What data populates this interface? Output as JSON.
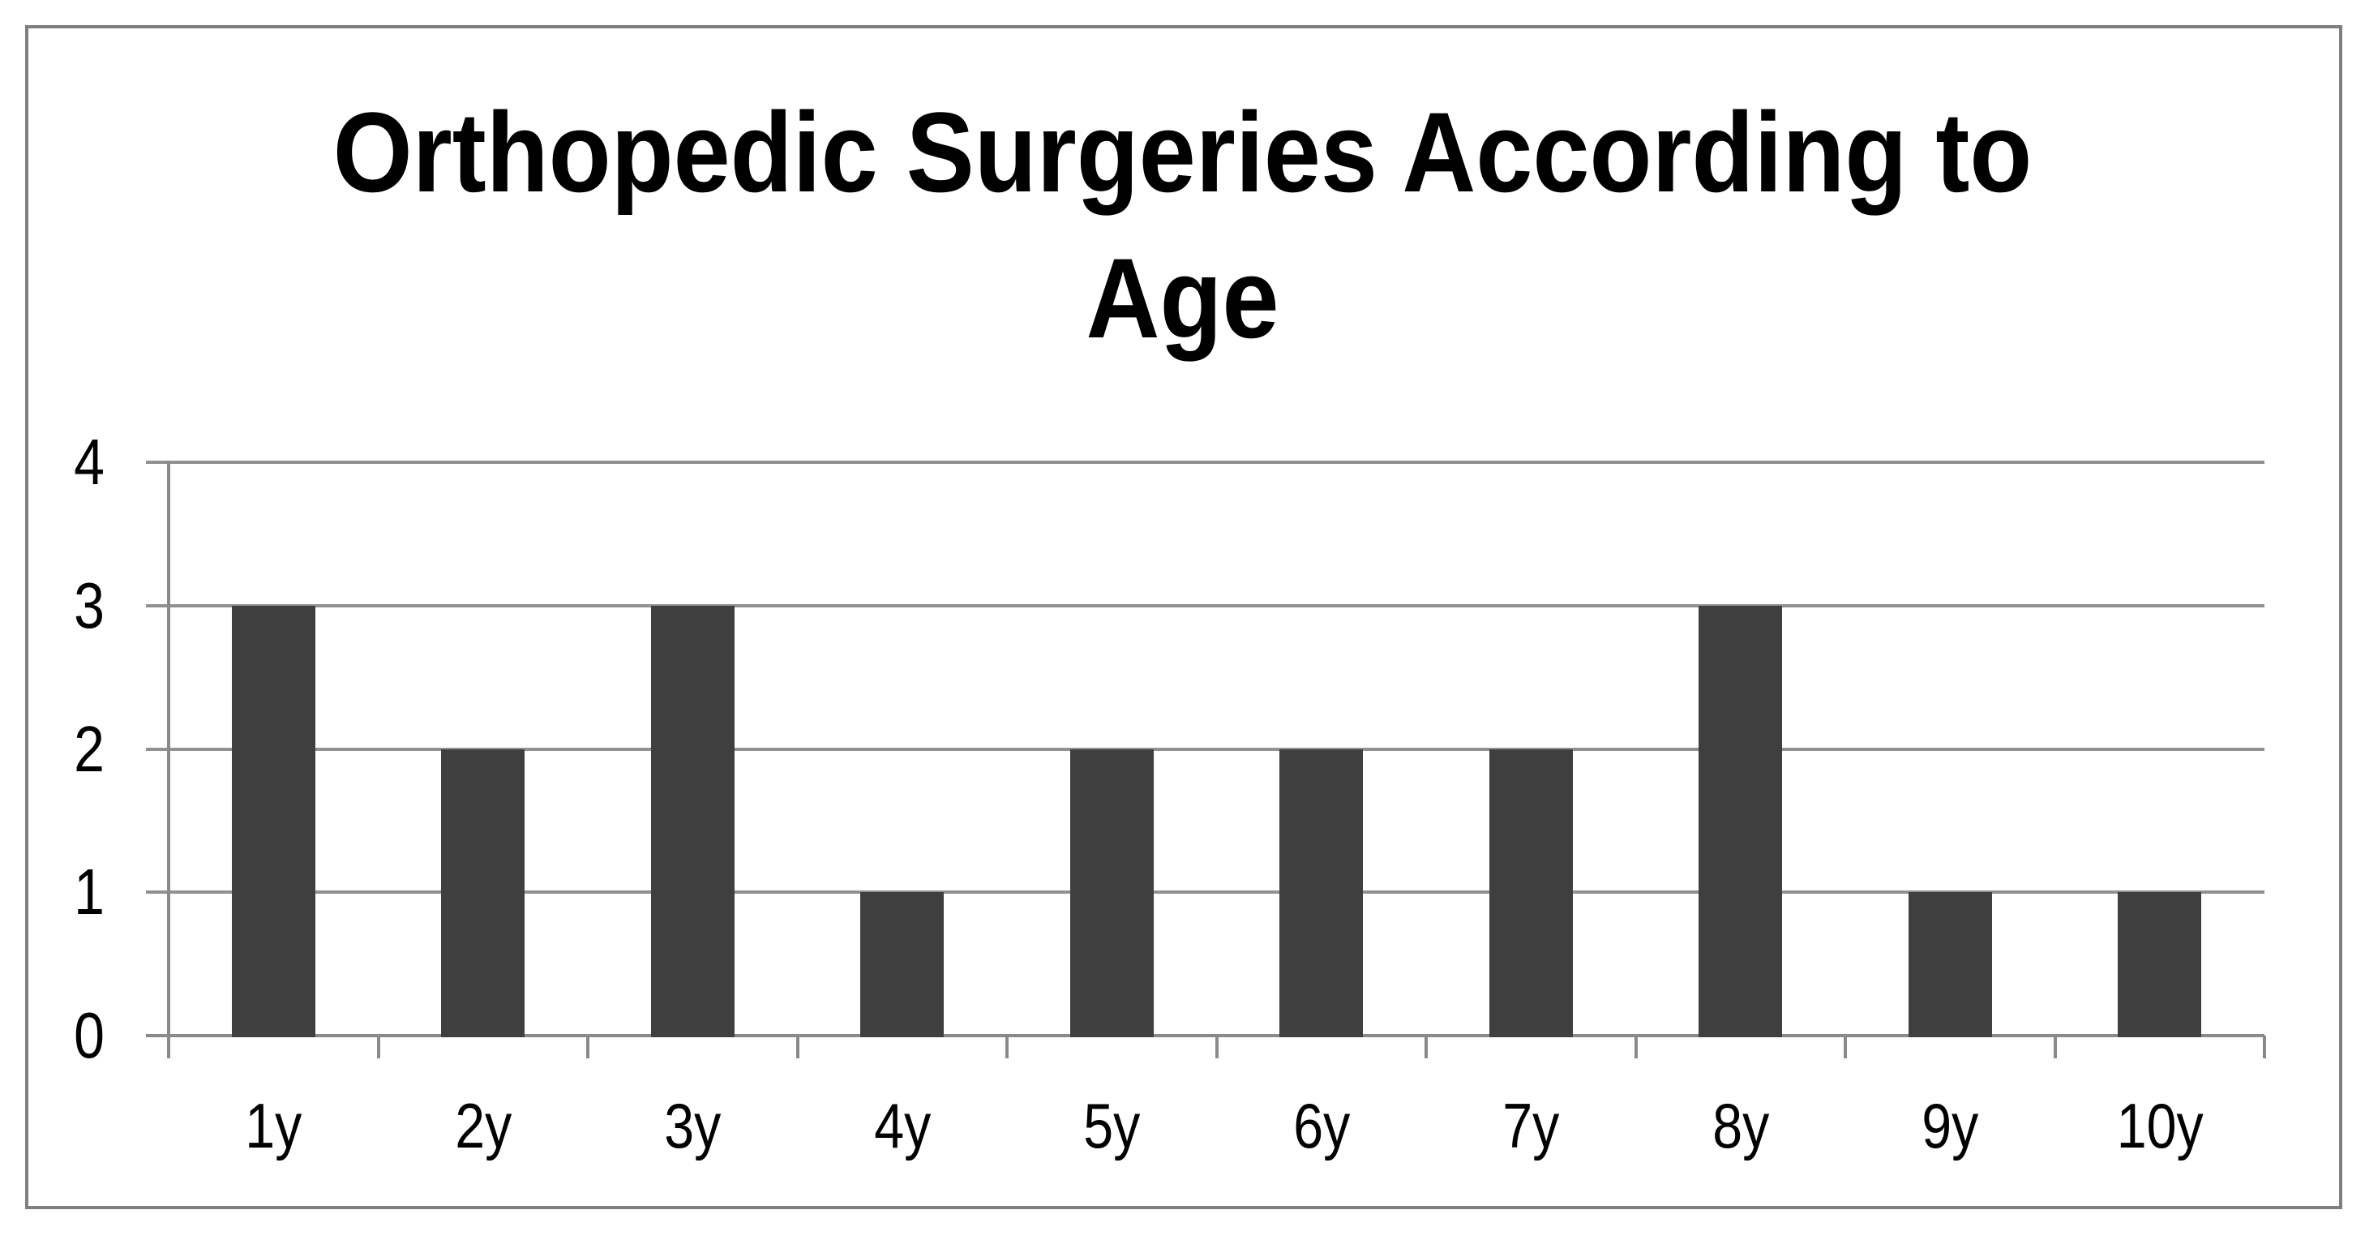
{
  "chart_data": {
    "type": "bar",
    "title": "Orthopedic Surgeries According to Age",
    "title_lines": [
      "Orthopedic Surgeries According to",
      "Age"
    ],
    "categories": [
      "1y",
      "2y",
      "3y",
      "4y",
      "5y",
      "6y",
      "7y",
      "8y",
      "9y",
      "10y"
    ],
    "values": [
      3,
      2,
      3,
      1,
      2,
      2,
      2,
      3,
      1,
      1
    ],
    "xlabel": "",
    "ylabel": "",
    "ylim": [
      0,
      4
    ],
    "ytick_step": 1,
    "yticks": [
      "0",
      "1",
      "2",
      "3",
      "4"
    ],
    "grid": "horizontal-gridlines-on",
    "legend": "none",
    "colors": {
      "bar": "#3f3f3f",
      "gridline": "#919191",
      "axis": "#8a8a8a",
      "frame_border": "#7f7f7f",
      "text": "#000000",
      "background": "#ffffff"
    }
  }
}
